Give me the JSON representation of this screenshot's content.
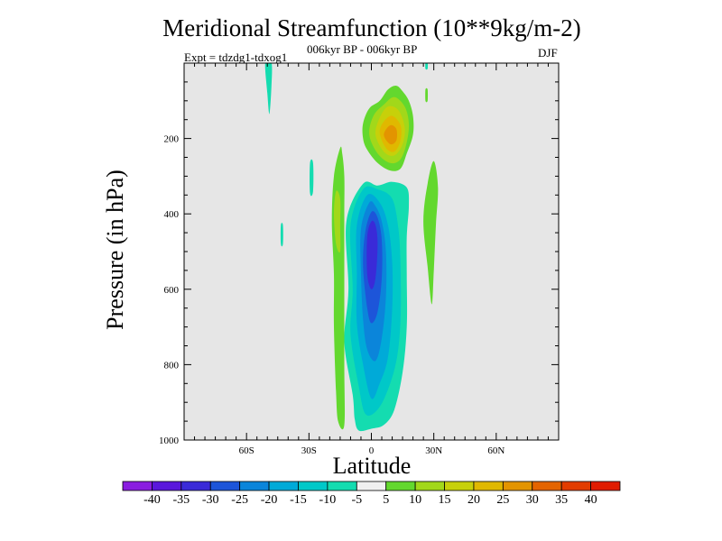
{
  "chart_data": {
    "type": "heatmap",
    "title": "Meridional Streamfunction (10**9kg/m-2)",
    "subtitle": "006kyr BP - 006kyr BP",
    "experiment": "Expt = tdzdg1-tdxog1",
    "season": "DJF",
    "xlabel": "Latitude",
    "ylabel": "Pressure (in hPa)",
    "xlim": [
      -90,
      90
    ],
    "ylim": [
      1000,
      0
    ],
    "x_ticks": [
      {
        "value": -60,
        "label": "60S"
      },
      {
        "value": -30,
        "label": "30S"
      },
      {
        "value": 0,
        "label": "0"
      },
      {
        "value": 30,
        "label": "30N"
      },
      {
        "value": 60,
        "label": "60N"
      }
    ],
    "y_ticks": [
      {
        "value": 200,
        "label": "200"
      },
      {
        "value": 400,
        "label": "400"
      },
      {
        "value": 600,
        "label": "600"
      },
      {
        "value": 800,
        "label": "800"
      },
      {
        "value": 1000,
        "label": "1000"
      }
    ],
    "background_color": "#e6e6e6",
    "colorbar": {
      "labels": [
        "-40",
        "-35",
        "-30",
        "-25",
        "-20",
        "-15",
        "-10",
        "-5",
        "5",
        "10",
        "15",
        "20",
        "25",
        "30",
        "35",
        "40"
      ],
      "colors": [
        "#8a1de0",
        "#5a18dc",
        "#3a2ad8",
        "#1d55d9",
        "#0b85da",
        "#00aad8",
        "#00c8c8",
        "#14dcb0",
        "#f0f0f0",
        "#63d82e",
        "#a2d81a",
        "#c7d00a",
        "#e0b800",
        "#e39400",
        "#e46400",
        "#e23c00",
        "#e01c00"
      ]
    },
    "contours": [
      {
        "level": "-10",
        "color": "#14dcb0",
        "points": [
          [
            -4,
            320
          ],
          [
            -12,
            420
          ],
          [
            -11,
            600
          ],
          [
            -13,
            740
          ],
          [
            -9,
            880
          ],
          [
            -8,
            945
          ],
          [
            -6,
            975
          ],
          [
            0,
            970
          ],
          [
            6,
            960
          ],
          [
            11,
            920
          ],
          [
            15,
            820
          ],
          [
            17,
            700
          ],
          [
            17,
            560
          ],
          [
            17,
            460
          ],
          [
            18,
            380
          ],
          [
            17,
            330
          ],
          [
            10,
            315
          ],
          [
            3,
            325
          ]
        ]
      },
      {
        "level": "-10",
        "color": "#14dcb0",
        "points": [
          [
            -51,
            -2
          ],
          [
            -48,
            -2
          ],
          [
            -48,
            60
          ],
          [
            -49,
            135
          ],
          [
            -50,
            80
          ]
        ]
      },
      {
        "level": "-10",
        "color": "#14dcb0",
        "points": [
          [
            -29.5,
            265
          ],
          [
            -28,
            265
          ],
          [
            -28,
            340
          ],
          [
            -29.5,
            345
          ]
        ]
      },
      {
        "level": "-10",
        "color": "#14dcb0",
        "points": [
          [
            -43.5,
            430
          ],
          [
            -42.5,
            430
          ],
          [
            -42.5,
            480
          ],
          [
            -43.5,
            480
          ]
        ]
      },
      {
        "level": "-10",
        "color": "#14dcb0",
        "points": [
          [
            26,
            -2
          ],
          [
            27,
            -2
          ],
          [
            27,
            15
          ],
          [
            26,
            15
          ]
        ]
      },
      {
        "level": "-15",
        "color": "#00c8c8",
        "points": [
          [
            -4,
            335
          ],
          [
            -10,
            430
          ],
          [
            -9,
            600
          ],
          [
            -10,
            720
          ],
          [
            -6,
            860
          ],
          [
            -3,
            930
          ],
          [
            2,
            925
          ],
          [
            7,
            880
          ],
          [
            12,
            790
          ],
          [
            14,
            680
          ],
          [
            14,
            540
          ],
          [
            13,
            440
          ],
          [
            10,
            360
          ],
          [
            3,
            335
          ]
        ]
      },
      {
        "level": "-20",
        "color": "#00aad8",
        "points": [
          [
            -2,
            350
          ],
          [
            -7,
            430
          ],
          [
            -7,
            560
          ],
          [
            -7,
            690
          ],
          [
            -4,
            800
          ],
          [
            0,
            890
          ],
          [
            4,
            850
          ],
          [
            8,
            780
          ],
          [
            10,
            650
          ],
          [
            10,
            530
          ],
          [
            8,
            430
          ],
          [
            4,
            370
          ]
        ]
      },
      {
        "level": "-25",
        "color": "#0b85da",
        "points": [
          [
            -1,
            370
          ],
          [
            -5,
            440
          ],
          [
            -5,
            560
          ],
          [
            -4,
            680
          ],
          [
            -2,
            760
          ],
          [
            2,
            790
          ],
          [
            5,
            730
          ],
          [
            7,
            620
          ],
          [
            7,
            500
          ],
          [
            5,
            420
          ],
          [
            2,
            380
          ]
        ]
      },
      {
        "level": "-30",
        "color": "#1d55d9",
        "points": [
          [
            0,
            395
          ],
          [
            -3,
            450
          ],
          [
            -4,
            540
          ],
          [
            -2,
            650
          ],
          [
            0,
            690
          ],
          [
            3,
            660
          ],
          [
            5,
            570
          ],
          [
            5,
            470
          ],
          [
            3,
            410
          ]
        ]
      },
      {
        "level": "-35",
        "color": "#3a2ad8",
        "points": [
          [
            0,
            420
          ],
          [
            -2,
            460
          ],
          [
            -2,
            560
          ],
          [
            0,
            600
          ],
          [
            2,
            570
          ],
          [
            3,
            480
          ],
          [
            2,
            430
          ]
        ]
      },
      {
        "level": "5",
        "color": "#63d82e",
        "points": [
          [
            -15,
            225
          ],
          [
            -18,
            300
          ],
          [
            -19,
            420
          ],
          [
            -18,
            560
          ],
          [
            -18,
            700
          ],
          [
            -17,
            870
          ],
          [
            -16,
            950
          ],
          [
            -13,
            960
          ],
          [
            -13,
            800
          ],
          [
            -13,
            560
          ],
          [
            -13,
            400
          ],
          [
            -13,
            300
          ],
          [
            -14,
            240
          ]
        ]
      },
      {
        "level": "5",
        "color": "#63d82e",
        "points": [
          [
            30,
            260
          ],
          [
            27,
            320
          ],
          [
            25,
            420
          ],
          [
            27,
            540
          ],
          [
            29,
            640
          ],
          [
            30,
            550
          ],
          [
            31,
            430
          ],
          [
            32,
            330
          ]
        ]
      },
      {
        "level": "5",
        "color": "#63d82e",
        "points": [
          [
            -4,
            200
          ],
          [
            -2,
            230
          ],
          [
            3,
            265
          ],
          [
            9,
            285
          ],
          [
            14,
            280
          ],
          [
            17,
            240
          ],
          [
            20,
            190
          ],
          [
            20,
            140
          ],
          [
            18,
            100
          ],
          [
            15,
            75
          ],
          [
            12,
            60
          ],
          [
            8,
            70
          ],
          [
            4,
            100
          ],
          [
            -1,
            120
          ],
          [
            -4,
            160
          ]
        ]
      },
      {
        "level": "5",
        "color": "#63d82e",
        "points": [
          [
            26,
            70
          ],
          [
            27,
            70
          ],
          [
            27,
            100
          ],
          [
            26,
            100
          ]
        ]
      },
      {
        "level": "10",
        "color": "#a2d81a",
        "points": [
          [
            -17,
            340
          ],
          [
            -18,
            400
          ],
          [
            -17,
            480
          ],
          [
            -15,
            500
          ],
          [
            -15,
            430
          ],
          [
            -15,
            360
          ]
        ]
      },
      {
        "level": "10",
        "color": "#a2d81a",
        "points": [
          [
            -1,
            190
          ],
          [
            3,
            240
          ],
          [
            9,
            265
          ],
          [
            14,
            255
          ],
          [
            17,
            210
          ],
          [
            18,
            160
          ],
          [
            16,
            115
          ],
          [
            11,
            90
          ],
          [
            6,
            110
          ],
          [
            1,
            140
          ]
        ]
      },
      {
        "level": "15",
        "color": "#c7d00a",
        "points": [
          [
            2,
            190
          ],
          [
            6,
            235
          ],
          [
            11,
            245
          ],
          [
            15,
            215
          ],
          [
            16,
            170
          ],
          [
            13,
            125
          ],
          [
            8,
            115
          ],
          [
            4,
            145
          ]
        ]
      },
      {
        "level": "20",
        "color": "#e0b800",
        "points": [
          [
            4,
            185
          ],
          [
            7,
            225
          ],
          [
            11,
            235
          ],
          [
            14,
            205
          ],
          [
            14,
            165
          ],
          [
            10,
            140
          ],
          [
            6,
            155
          ]
        ]
      },
      {
        "level": "25",
        "color": "#e39400",
        "points": [
          [
            6,
            190
          ],
          [
            9,
            215
          ],
          [
            12,
            205
          ],
          [
            12,
            175
          ],
          [
            9,
            165
          ]
        ]
      }
    ]
  }
}
